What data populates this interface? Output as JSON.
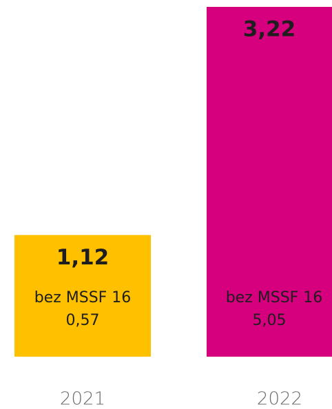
{
  "chart_data": {
    "type": "bar",
    "categories": [
      "2021",
      "2022"
    ],
    "series": [
      {
        "colors": [
          "#ffc000",
          "#d6007e"
        ],
        "values": [
          1.12,
          3.22
        ],
        "value_labels": [
          "1,12",
          "3,22"
        ]
      }
    ],
    "annotations": [
      {
        "label": "bez MSSF 16",
        "value_label": "0,57"
      },
      {
        "label": "bez MSSF 16",
        "value_label": "5,05"
      }
    ]
  }
}
